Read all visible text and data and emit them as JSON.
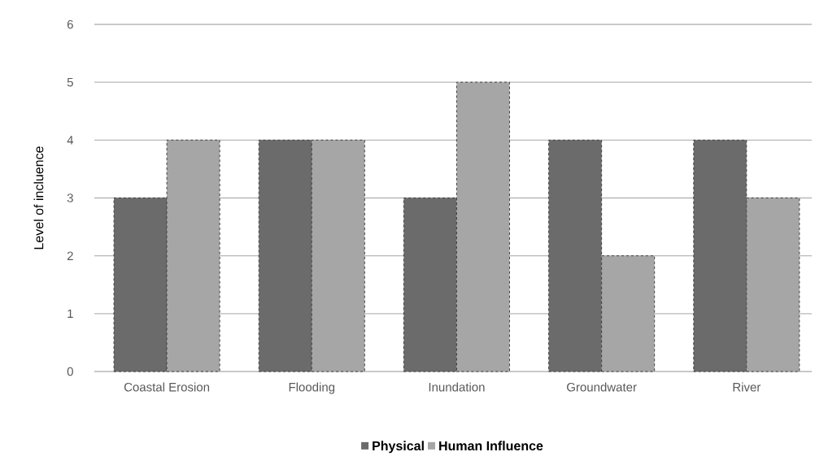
{
  "chart_data": {
    "type": "bar",
    "ylabel": "Level of incluence",
    "categories": [
      "Coastal Erosion",
      "Flooding",
      "Inundation",
      "Groundwater",
      "River"
    ],
    "series": [
      {
        "name": "Physical",
        "color": "#6b6b6b",
        "values": [
          3,
          4,
          3,
          4,
          4
        ]
      },
      {
        "name": "Human Influence",
        "color": "#a6a6a6",
        "values": [
          4,
          4,
          5,
          2,
          3
        ]
      }
    ],
    "ylim": [
      0,
      6
    ],
    "yticks": [
      0,
      1,
      2,
      3,
      4,
      5,
      6
    ],
    "grid": "y",
    "legend": "bottom"
  }
}
